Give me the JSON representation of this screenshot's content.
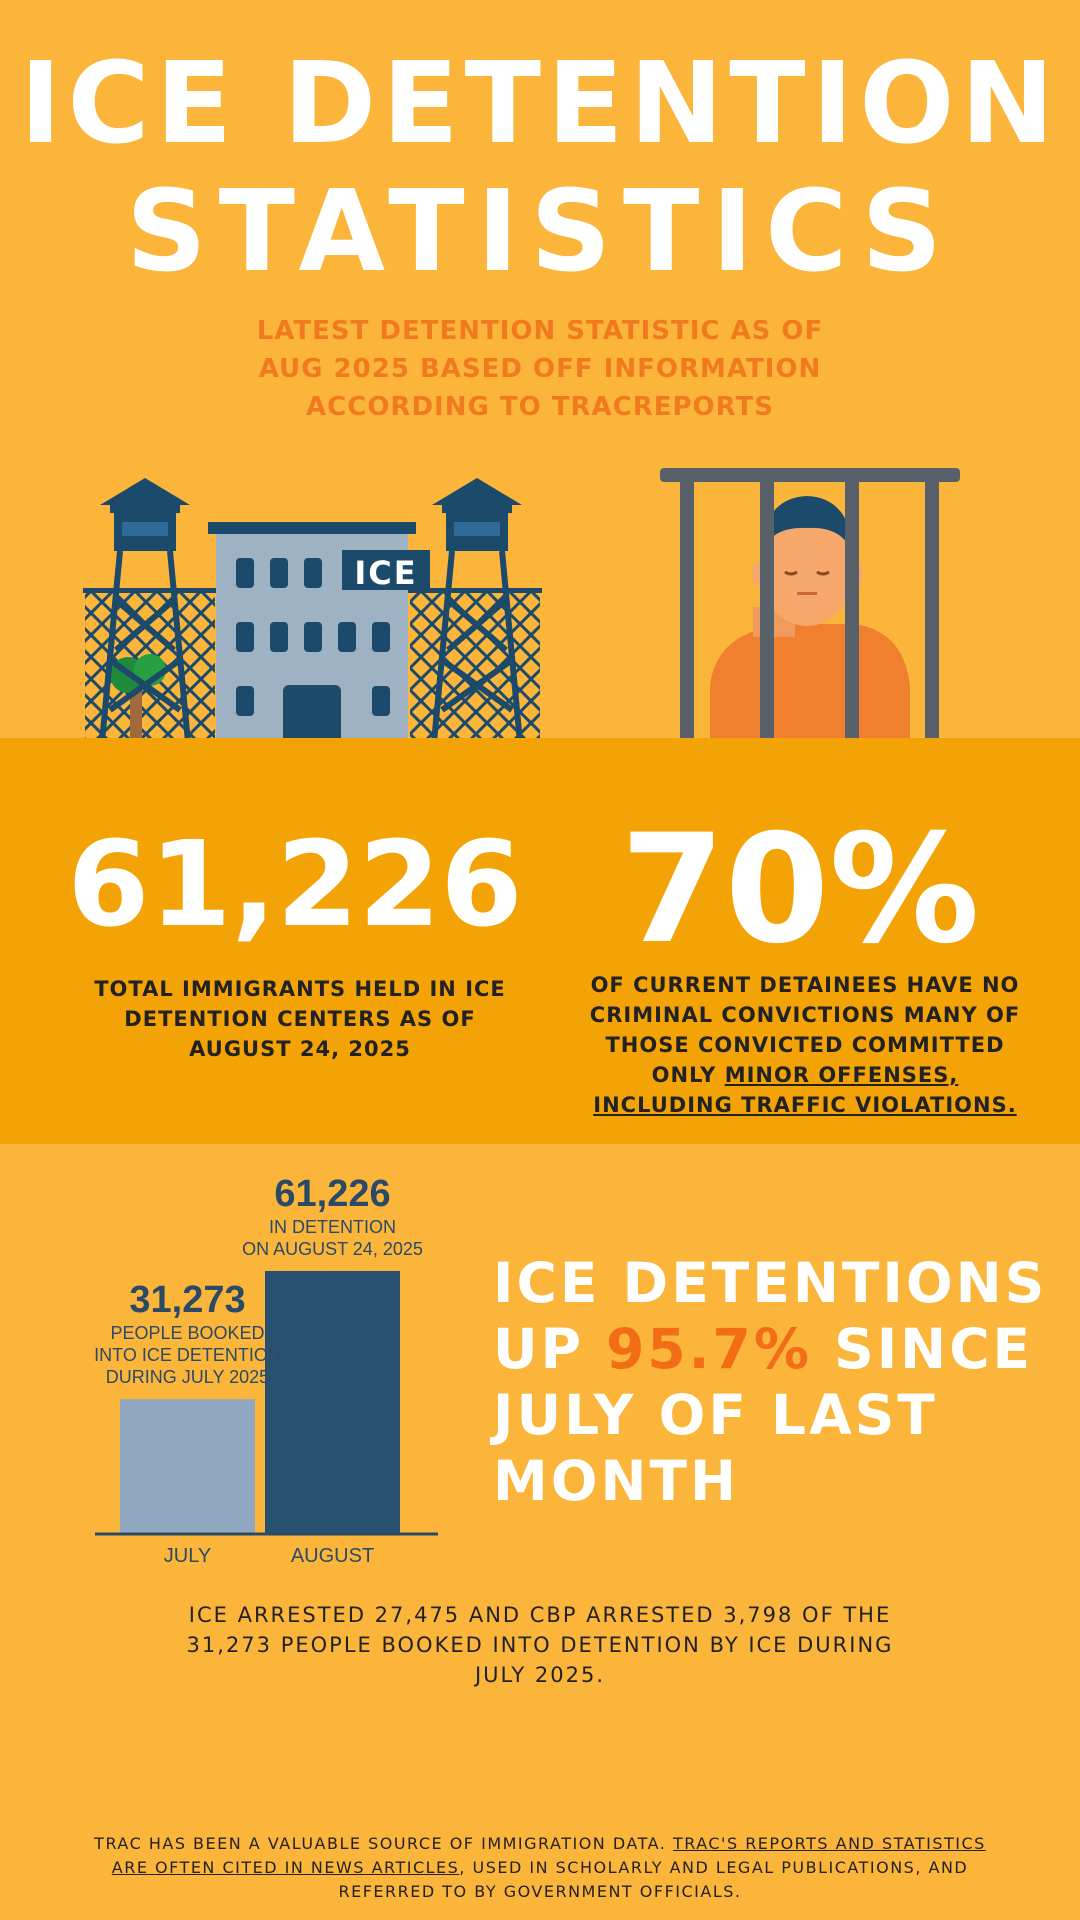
{
  "header": {
    "title_line1": "ICE DETENTION",
    "title_line2": "STATISTICS",
    "subtitle_line1": "LATEST DETENTION STATISTIC AS OF",
    "subtitle_line2": "AUG 2025 BASED OFF INFORMATION",
    "subtitle_line3": "ACCORDING TO TRACREPORTS"
  },
  "illustrations": {
    "building_sign": "ICE",
    "building_icon": "detention-center-icon",
    "prisoner_icon": "prisoner-behind-bars-icon"
  },
  "stats": {
    "held_value": "61,226",
    "held_caption_line1": "TOTAL IMMIGRANTS HELD IN ICE",
    "held_caption_line2": "DETENTION CENTERS AS OF",
    "held_caption_line3": "AUGUST 24, 2025",
    "nocrime_value": "70%",
    "nocrime_line1": "OF CURRENT DETAINEES HAVE NO",
    "nocrime_line2": "CRIMINAL CONVICTIONS MANY OF",
    "nocrime_line3": "THOSE CONVICTED COMMITTED",
    "nocrime_line4_prefix": "ONLY ",
    "nocrime_line4_link": "MINOR OFFENSES,",
    "nocrime_line5_link": "INCLUDING TRAFFIC VIOLATIONS."
  },
  "chart_data": {
    "type": "bar",
    "categories": [
      "JULY",
      "AUGUST"
    ],
    "values": [
      31273,
      61226
    ],
    "value_labels": [
      "31,273",
      "61,226"
    ],
    "annotations": [
      [
        "PEOPLE BOOKED",
        "INTO ICE DETENTION",
        "DURING JULY 2025"
      ],
      [
        "IN DETENTION",
        "ON AUGUST 24, 2025"
      ]
    ],
    "bar_colors": [
      "#8fa8bf",
      "#28516f"
    ],
    "ylim": [
      0,
      61226
    ],
    "grid": false
  },
  "headline": {
    "line1": "ICE DETENTIONS",
    "line2_prefix": "UP ",
    "line2_highlight": "95.7%",
    "line2_suffix": " SINCE",
    "line3": "JULY OF LAST",
    "line4": "MONTH"
  },
  "note": {
    "line1": "ICE ARRESTED 27,475 AND CBP ARRESTED 3,798 OF THE",
    "line2": "31,273 PEOPLE BOOKED INTO DETENTION BY ICE DURING",
    "line3": "JULY 2025."
  },
  "footer": {
    "text1": "TRAC HAS BEEN A VALUABLE SOURCE OF IMMIGRATION DATA. ",
    "link1": "TRAC'S REPORTS AND STATISTICS",
    "link2": "ARE OFTEN CITED IN NEWS ARTICLES",
    "text2": ", USED IN SCHOLARLY AND LEGAL PUBLICATIONS, AND",
    "text3": "REFERRED TO BY GOVERNMENT OFFICIALS."
  },
  "colors": {
    "background": "#fbb53b",
    "band": "#f4a306",
    "accent_orange": "#f26d15",
    "navy": "#28516f"
  }
}
